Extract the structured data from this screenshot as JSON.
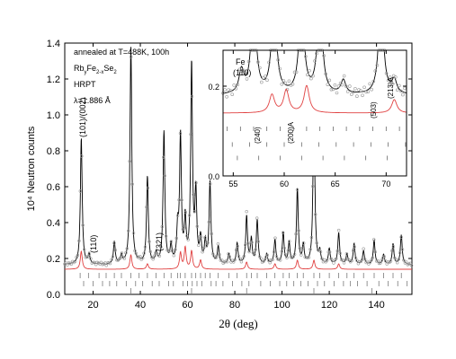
{
  "chart_data": [
    {
      "type": "line",
      "role": "main",
      "xlabel": "2θ (deg)",
      "ylabel": "10⁴ Neutron counts",
      "xlim": [
        8,
        155
      ],
      "ylim": [
        0,
        1.4
      ],
      "xticks": [
        20,
        40,
        60,
        80,
        100,
        120,
        140
      ],
      "yticks": [
        0.0,
        0.2,
        0.4,
        0.6,
        0.8,
        1.0,
        1.2,
        1.4
      ],
      "grid": false,
      "annotations": [
        {
          "text": "annealed at T=488K, 100h"
        },
        {
          "text": "RbyFe2-xSe2"
        },
        {
          "text": "HRPT"
        },
        {
          "text": "λ=1.886 Å"
        },
        {
          "text": "(101)/(002)"
        },
        {
          "text": "(110)"
        },
        {
          "text": "(321)"
        }
      ],
      "baseline_y": 0.165,
      "peaks": [
        {
          "x": 15.0,
          "y": 0.87
        },
        {
          "x": 18.3,
          "y": 0.22
        },
        {
          "x": 22.5,
          "y": 0.17
        },
        {
          "x": 25.5,
          "y": 0.16
        },
        {
          "x": 29.0,
          "y": 0.29
        },
        {
          "x": 32.0,
          "y": 0.21
        },
        {
          "x": 36.0,
          "y": 1.38
        },
        {
          "x": 39.5,
          "y": 0.18
        },
        {
          "x": 43.0,
          "y": 0.65
        },
        {
          "x": 46.7,
          "y": 0.22
        },
        {
          "x": 50.0,
          "y": 0.9
        },
        {
          "x": 53.0,
          "y": 0.26
        },
        {
          "x": 55.8,
          "y": 0.34
        },
        {
          "x": 57.0,
          "y": 0.87
        },
        {
          "x": 59.0,
          "y": 0.4
        },
        {
          "x": 61.7,
          "y": 1.27
        },
        {
          "x": 63.5,
          "y": 0.55
        },
        {
          "x": 65.5,
          "y": 0.3
        },
        {
          "x": 67.5,
          "y": 0.28
        },
        {
          "x": 69.5,
          "y": 0.62
        },
        {
          "x": 73.0,
          "y": 0.26
        },
        {
          "x": 77.5,
          "y": 0.22
        },
        {
          "x": 81.0,
          "y": 0.28
        },
        {
          "x": 85.0,
          "y": 0.43
        },
        {
          "x": 87.0,
          "y": 0.3
        },
        {
          "x": 89.5,
          "y": 0.41
        },
        {
          "x": 93.5,
          "y": 0.22
        },
        {
          "x": 97.0,
          "y": 0.3
        },
        {
          "x": 100.5,
          "y": 0.34
        },
        {
          "x": 103.0,
          "y": 0.28
        },
        {
          "x": 106.5,
          "y": 0.58
        },
        {
          "x": 109.0,
          "y": 0.27
        },
        {
          "x": 113.5,
          "y": 1.05
        },
        {
          "x": 116.0,
          "y": 0.23
        },
        {
          "x": 120.0,
          "y": 0.25
        },
        {
          "x": 124.0,
          "y": 0.34
        },
        {
          "x": 127.5,
          "y": 0.22
        },
        {
          "x": 130.5,
          "y": 0.28
        },
        {
          "x": 134.5,
          "y": 0.24
        },
        {
          "x": 139.0,
          "y": 0.3
        },
        {
          "x": 143.0,
          "y": 0.22
        },
        {
          "x": 147.0,
          "y": 0.28
        },
        {
          "x": 150.5,
          "y": 0.33
        }
      ],
      "difference_peaks": [
        {
          "x": 15.0,
          "y": 0.1
        },
        {
          "x": 36.0,
          "y": 0.08
        },
        {
          "x": 43.0,
          "y": 0.03
        },
        {
          "x": 57.0,
          "y": 0.09
        },
        {
          "x": 59.0,
          "y": 0.12
        },
        {
          "x": 61.7,
          "y": 0.1
        },
        {
          "x": 65.5,
          "y": 0.05
        },
        {
          "x": 85.0,
          "y": 0.04
        },
        {
          "x": 97.0,
          "y": 0.03
        },
        {
          "x": 106.5,
          "y": 0.05
        },
        {
          "x": 113.5,
          "y": 0.05
        },
        {
          "x": 124.0,
          "y": 0.03
        }
      ],
      "reflection_rows": [
        {
          "y": 0.105,
          "x": [
            14.5,
            18,
            22.5,
            25.5,
            29,
            32,
            36,
            39.5,
            43,
            46.7,
            50,
            53,
            55.8,
            57,
            59,
            61.7,
            63.5,
            65.5,
            67.5,
            69.5,
            73,
            77.5,
            81,
            85,
            87,
            89.5,
            93.5,
            97,
            100.5,
            103,
            106.5,
            109,
            113.5,
            116,
            120,
            124,
            127.5,
            130.5,
            134.5,
            139,
            143,
            147,
            150.5
          ]
        },
        {
          "y": 0.06,
          "x": [
            16,
            20,
            24,
            27,
            30,
            34,
            38,
            41,
            45,
            48,
            52,
            54,
            58,
            60,
            62,
            64,
            66,
            70,
            72,
            75,
            79,
            83,
            86,
            91,
            95,
            99,
            102,
            105,
            108,
            111,
            115,
            118,
            122,
            126,
            129,
            132,
            136,
            141,
            145,
            149,
            153
          ]
        },
        {
          "y": 0.02,
          "x": [
            36,
            61.7,
            85,
            113.5,
            138
          ]
        }
      ],
      "colors": {
        "observed": "#8c8c8c",
        "calculated": "#000000",
        "difference": "#e04040",
        "reflections": "#666666"
      }
    },
    {
      "type": "line",
      "role": "inset",
      "xlim": [
        54,
        72
      ],
      "ylim": [
        0,
        0.28
      ],
      "xticks": [
        55,
        60,
        65,
        70
      ],
      "yticks": [
        0.0,
        0.2
      ],
      "annotations": [
        {
          "text": "Fe (110)"
        },
        {
          "text": "(240)"
        },
        {
          "text": "(200)A"
        },
        {
          "text": "(503)"
        },
        {
          "text": "(213)A"
        }
      ],
      "baseline_y": 0.18,
      "peaks": [
        {
          "x": 55.8,
          "y": 0.23
        },
        {
          "x": 57.0,
          "y": 0.4
        },
        {
          "x": 59.0,
          "y": 0.4
        },
        {
          "x": 61.7,
          "y": 0.4
        },
        {
          "x": 63.5,
          "y": 0.4
        },
        {
          "x": 65.8,
          "y": 0.21
        },
        {
          "x": 69.5,
          "y": 0.4
        },
        {
          "x": 70.8,
          "y": 0.21
        }
      ],
      "difference_peaks": [
        {
          "x": 58.8,
          "y": 0.04
        },
        {
          "x": 60.2,
          "y": 0.05
        },
        {
          "x": 62.2,
          "y": 0.06
        },
        {
          "x": 70.8,
          "y": 0.03
        }
      ]
    }
  ]
}
